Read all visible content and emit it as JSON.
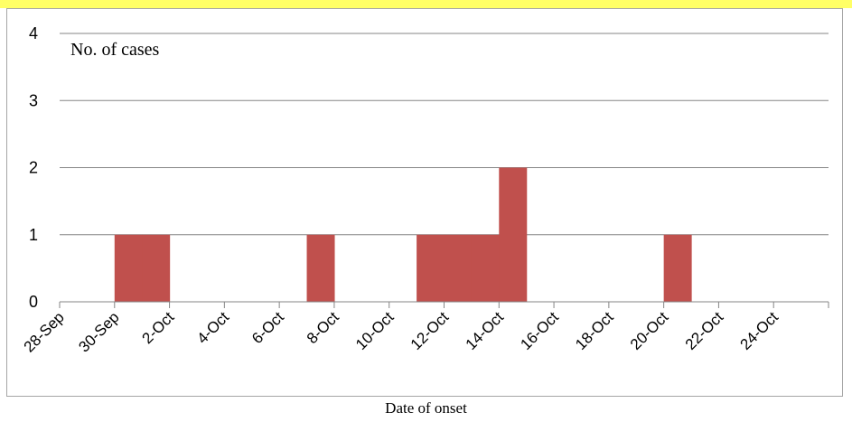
{
  "chart_data": {
    "type": "bar",
    "ylabel": "No. of cases",
    "xlabel": "Date of onset",
    "ylim": [
      0,
      4
    ],
    "yticks": [
      0,
      1,
      2,
      3,
      4
    ],
    "x_tick_labels": [
      "28-Sep",
      "30-Sep",
      "2-Oct",
      "4-Oct",
      "6-Oct",
      "8-Oct",
      "10-Oct",
      "12-Oct",
      "14-Oct",
      "16-Oct",
      "18-Oct",
      "20-Oct",
      "22-Oct",
      "24-Oct"
    ],
    "x_start": "28-Sep",
    "x_end": "26-Oct",
    "bar_dates": [
      "30-Sep",
      "1-Oct",
      "7-Oct",
      "11-Oct",
      "12-Oct",
      "13-Oct",
      "14-Oct",
      "20-Oct"
    ],
    "values": [
      1,
      1,
      1,
      1,
      1,
      1,
      2,
      1
    ],
    "bar_color": "#c0504d",
    "grid": true
  }
}
